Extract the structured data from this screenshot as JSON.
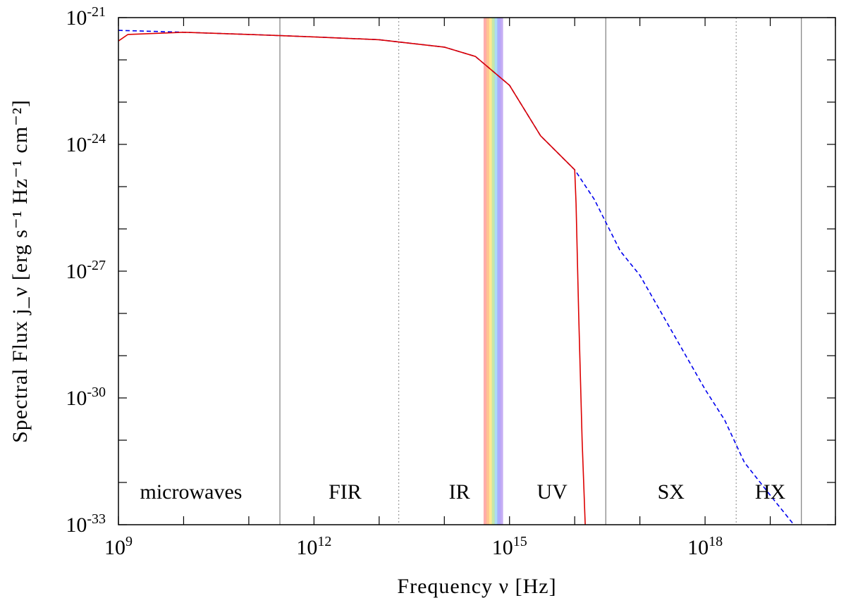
{
  "chart_data": {
    "type": "line",
    "xlabel": "Frequency ν [Hz]",
    "ylabel": "Spectral Flux j_ν [erg s⁻¹ Hz⁻¹ cm⁻²]",
    "x_scale": "log",
    "y_scale": "log",
    "xlim": [
      1000000000.0,
      1e+20
    ],
    "ylim": [
      1e-33,
      1e-21
    ],
    "x_ticks": [
      {
        "value": 1000000000.0,
        "base": "10",
        "exp": "9"
      },
      {
        "value": 1000000000000.0,
        "base": "10",
        "exp": "12"
      },
      {
        "value": 1000000000000000.0,
        "base": "10",
        "exp": "15"
      },
      {
        "value": 1e+18,
        "base": "10",
        "exp": "18"
      }
    ],
    "y_ticks": [
      {
        "value": 1e-21,
        "base": "10",
        "exp": "-21"
      },
      {
        "value": 1e-24,
        "base": "10",
        "exp": "-24"
      },
      {
        "value": 1e-27,
        "base": "10",
        "exp": "-27"
      },
      {
        "value": 1e-30,
        "base": "10",
        "exp": "-30"
      },
      {
        "value": 1e-33,
        "base": "10",
        "exp": "-33"
      }
    ],
    "band_boundaries": [
      {
        "x": 300000000000.0,
        "style": "solid"
      },
      {
        "x": 20000000000000.0,
        "style": "dotted"
      },
      {
        "x": 3e+16,
        "style": "solid"
      },
      {
        "x": 3e+18,
        "style": "dotted"
      },
      {
        "x": 3e+19,
        "style": "solid"
      }
    ],
    "band_labels": [
      {
        "text": "microwaves",
        "x": 13000000000.0
      },
      {
        "text": "FIR",
        "x": 3000000000000.0
      },
      {
        "text": "IR",
        "x": 170000000000000.0
      },
      {
        "text": "UV",
        "x": 4500000000000000.0
      },
      {
        "text": "SX",
        "x": 3e+17
      },
      {
        "text": "HX",
        "x": 1e+19
      }
    ],
    "visible_band": {
      "x_range": [
        400000000000000.0,
        790000000000000.0
      ],
      "colors": [
        "#ff9090",
        "#ffb070",
        "#ffe070",
        "#b0e090",
        "#90d0f0",
        "#9090ff",
        "#b090f0"
      ]
    },
    "series": [
      {
        "color": "#0000ee",
        "dash": "dashed",
        "x": [
          1000000000.0,
          10000000000.0,
          100000000000.0,
          1000000000000.0,
          10000000000000.0,
          100000000000000.0,
          300000000000000.0,
          1000000000000000.0,
          3000000000000000.0,
          1e+16,
          2e+16,
          5e+16,
          1e+17,
          1e+18,
          2e+18,
          4e+18,
          1e+19,
          2.3e+19
        ],
        "y": [
          5e-22,
          4.5e-22,
          4e-22,
          3.5e-22,
          3e-22,
          2e-22,
          1.2e-22,
          2.5e-23,
          1.6e-24,
          2.5e-25,
          5e-26,
          3e-27,
          8e-28,
          1.6e-30,
          3e-31,
          3e-32,
          5e-33,
          1e-33
        ]
      },
      {
        "color": "#dd0000",
        "dash": "solid",
        "x": [
          1000000000.0,
          1400000000.0,
          10000000000.0,
          100000000000.0,
          1000000000000.0,
          10000000000000.0,
          100000000000000.0,
          300000000000000.0,
          1000000000000000.0,
          3000000000000000.0,
          1e+16,
          1.05e+16,
          1.15e+16,
          1.3e+16,
          1.45e+16
        ],
        "y": [
          2.8e-22,
          4e-22,
          4.5e-22,
          4e-22,
          3.5e-22,
          3e-22,
          2e-22,
          1.2e-22,
          2.5e-23,
          1.6e-24,
          2.5e-25,
          4e-26,
          1e-28,
          1e-31,
          1e-33
        ]
      }
    ]
  }
}
